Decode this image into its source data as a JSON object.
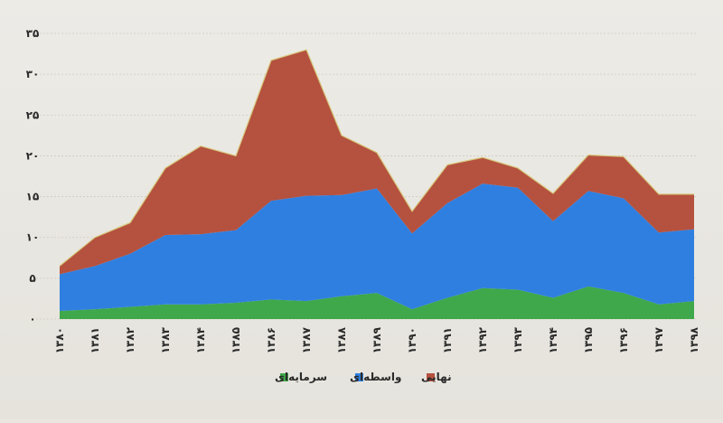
{
  "chart_data": {
    "type": "area",
    "stacked": true,
    "categories": [
      "۱۳۸۰",
      "۱۳۸۱",
      "۱۳۸۲",
      "۱۳۸۳",
      "۱۳۸۴",
      "۱۳۸۵",
      "۱۳۸۶",
      "۱۳۸۷",
      "۱۳۸۸",
      "۱۳۸۹",
      "۱۳۹۰",
      "۱۳۹۱",
      "۱۳۹۲",
      "۱۳۹۳",
      "۱۳۹۴",
      "۱۳۹۵",
      "۱۳۹۶",
      "۱۳۹۷",
      "۱۳۹۸"
    ],
    "series": [
      {
        "name": "سرمایه‌ای",
        "color": "#3fa84a",
        "values": [
          1.0,
          1.2,
          1.5,
          1.8,
          1.8,
          2.0,
          2.4,
          2.2,
          2.8,
          3.2,
          1.2,
          2.6,
          3.8,
          3.6,
          2.6,
          4.0,
          3.2,
          1.8,
          2.2
        ]
      },
      {
        "name": "واسطه‌ای",
        "color": "#2f7fe0",
        "values": [
          4.5,
          5.3,
          6.5,
          8.5,
          8.6,
          8.9,
          12.1,
          12.9,
          12.4,
          12.8,
          9.3,
          11.6,
          12.8,
          12.5,
          9.4,
          11.7,
          11.6,
          8.8,
          8.8
        ]
      },
      {
        "name": "نهایی",
        "color": "#b5513f",
        "values": [
          1.0,
          3.5,
          3.8,
          8.2,
          10.8,
          9.1,
          17.2,
          17.9,
          7.3,
          4.4,
          2.7,
          4.7,
          3.2,
          2.4,
          3.4,
          4.4,
          5.1,
          4.7,
          4.3
        ]
      }
    ],
    "ylim": [
      0,
      35
    ],
    "yticks": [
      "۰",
      "۵",
      "۱۰",
      "۱۵",
      "۲۰",
      "۲۵",
      "۳۰",
      "۳۵"
    ],
    "grid": true,
    "legend_position": "bottom-center",
    "legend_order": [
      2,
      1,
      0
    ]
  }
}
